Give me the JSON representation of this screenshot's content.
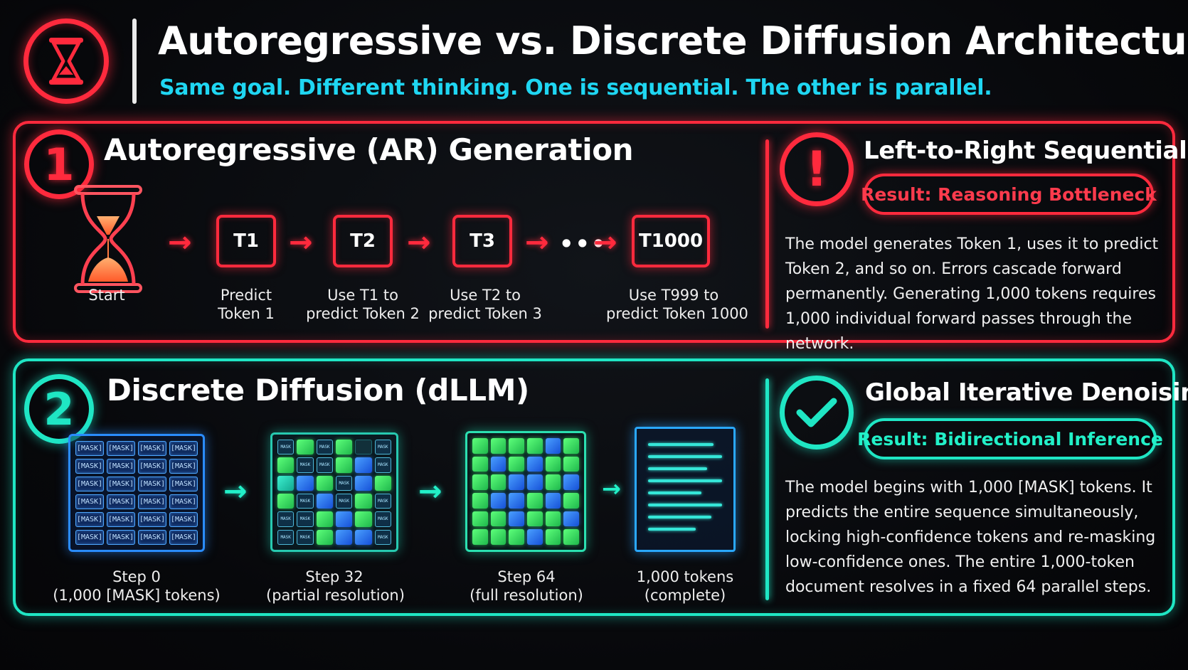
{
  "header": {
    "title": "Autoregressive vs. Discrete Diffusion Architecture",
    "subtitle": "Same goal. Different thinking. One is sequential. The other is parallel."
  },
  "ar": {
    "number": "1",
    "title": "Autoregressive (AR) Generation",
    "start_label": "Start",
    "tokens": [
      "T1",
      "T2",
      "T3",
      "T1000"
    ],
    "ellipsis": "•••",
    "captions": [
      [
        "Predict",
        "Token 1"
      ],
      [
        "Use T1 to",
        "predict Token 2"
      ],
      [
        "Use T2 to",
        "predict Token 3"
      ],
      [
        "Use T999 to",
        "predict Token 1000"
      ]
    ],
    "side_title": "Left-to-Right Sequential",
    "side_icon": "!",
    "result": "Result: Reasoning Bottleneck",
    "description": "The model generates Token 1, uses it to predict Token 2, and so on. Errors cascade forward permanently. Generating 1,000 tokens requires 1,000 individual forward passes through the network."
  },
  "dl": {
    "number": "2",
    "title": "Discrete Diffusion (dLLM)",
    "mask_label": "[MASK]",
    "mini_mask_label": "MASK",
    "steps": [
      [
        "Step 0",
        "(1,000 [MASK] tokens)"
      ],
      [
        "Step 32",
        "(partial resolution)"
      ],
      [
        "Step 64",
        "(full resolution)"
      ],
      [
        "1,000 tokens",
        "(complete)"
      ]
    ],
    "side_title": "Global Iterative Denoising",
    "result": "Result: Bidirectional Inference",
    "description": "The model begins with 1,000 [MASK] tokens. It predicts the entire sequence simultaneously, locking high-confidence tokens and re-masking low-confidence ones. The entire 1,000-token document resolves in a fixed 64 parallel steps."
  },
  "colors": {
    "ar_accent": "#ff2a3d",
    "dl_accent": "#1fe6c4",
    "subtitle": "#1fd6f2",
    "background": "#07080b"
  },
  "icons": [
    "hourglass-icon",
    "exclamation-icon",
    "checkmark-icon",
    "arrow-right-icon",
    "document-icon"
  ]
}
